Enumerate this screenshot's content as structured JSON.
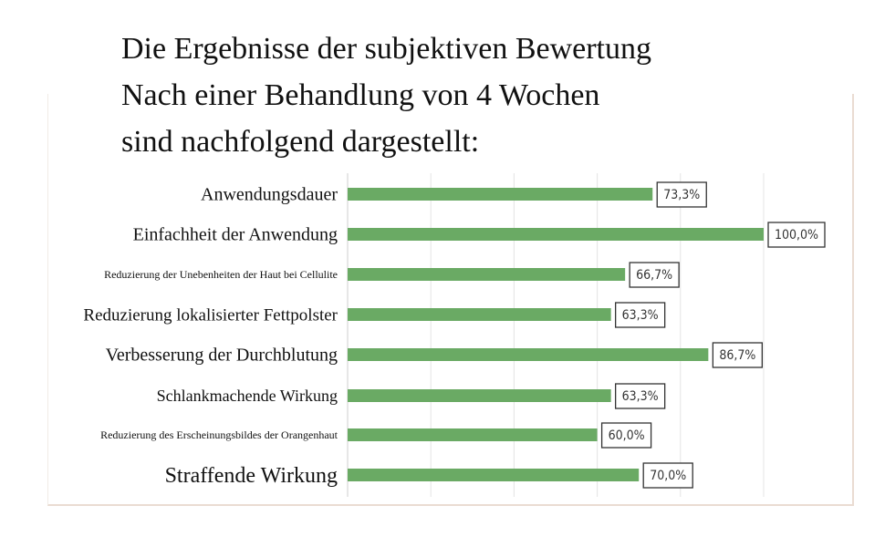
{
  "chart_data": {
    "type": "bar",
    "orientation": "horizontal",
    "title": [
      "Die Ergebnisse der subjektiven Bewertung",
      "Nach einer Behandlung von 4 Wochen",
      "sind nachfolgend dargestellt:"
    ],
    "categories": [
      "Anwendungsdauer",
      "Einfachheit der Anwendung",
      "Reduzierung der Unebenheiten der Haut bei Cellulite",
      "Reduzierung lokalisierter Fettpolster",
      "Verbesserung der Durchblutung",
      "Schlankmachende Wirkung",
      "Reduzierung des Erscheinungsbildes der Orangenhaut",
      "Straffende Wirkung"
    ],
    "values": [
      73.3,
      100.0,
      66.7,
      63.3,
      86.7,
      63.3,
      60.0,
      70.0
    ],
    "data_labels": [
      "73,3%",
      "100,0%",
      "66,7%",
      "63,3%",
      "86,7%",
      "63,3%",
      "60,0%",
      "70,0%"
    ],
    "xlim": [
      0,
      100
    ],
    "grid": true,
    "bar_color": "#6aaa64"
  }
}
